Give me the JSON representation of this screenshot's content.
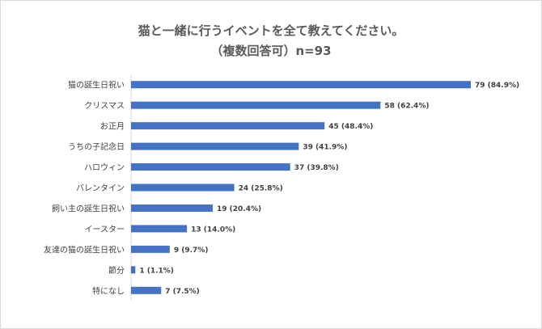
{
  "chart_data": {
    "type": "bar",
    "orientation": "horizontal",
    "title": "猫と一緒に行うイベントを全て教えてください。",
    "subtitle": "（複数回答可）n=93",
    "categories": [
      "猫の誕生日祝い",
      "クリスマス",
      "お正月",
      "うちの子記念日",
      "ハロウィン",
      "バレンタイン",
      "飼い主の誕生日祝い",
      "イースター",
      "友達の猫の誕生日祝い",
      "節分",
      "特になし"
    ],
    "values": [
      79,
      58,
      45,
      39,
      37,
      24,
      19,
      13,
      9,
      1,
      7
    ],
    "data_labels": [
      "79 (84.9%)",
      "58 (62.4%)",
      "45 (48.4%)",
      "39 (41.9%)",
      "37 (39.8%)",
      "24 (25.8%)",
      "19 (20.4%)",
      "13 (14.0%)",
      "9 (9.7%)",
      "1 (1.1%)",
      "7 (7.5%)"
    ],
    "xlabel": "",
    "ylabel": "",
    "xlim": [
      0,
      79
    ],
    "grid": false,
    "legend": "none",
    "bar_color": "#4472c4"
  }
}
